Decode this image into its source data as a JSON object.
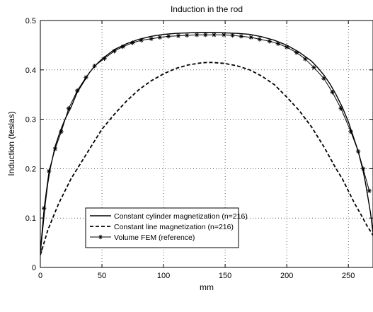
{
  "chart_data": {
    "type": "line",
    "title": "Induction in the rod",
    "xlabel": "mm",
    "ylabel": "Induction (teslas)",
    "xlim": [
      0,
      270
    ],
    "ylim": [
      0,
      0.5
    ],
    "xticks": [
      0,
      50,
      100,
      150,
      200,
      250
    ],
    "yticks": [
      0,
      0.1,
      0.2,
      0.3,
      0.4,
      0.5
    ],
    "grid": true,
    "legend_position": "bottom-left",
    "series": [
      {
        "name": "Constant cylinder magnetization (n=216)",
        "style": "solid",
        "color": "#000000",
        "x": [
          0,
          2,
          4,
          6,
          8,
          12,
          16,
          20,
          25,
          30,
          35,
          40,
          45,
          50,
          60,
          70,
          80,
          90,
          100,
          110,
          120,
          130,
          135,
          140,
          150,
          160,
          170,
          180,
          190,
          200,
          210,
          220,
          225,
          230,
          235,
          240,
          245,
          250,
          254,
          258,
          262,
          264,
          266,
          268,
          270
        ],
        "y": [
          0.03,
          0.08,
          0.13,
          0.17,
          0.2,
          0.245,
          0.275,
          0.3,
          0.325,
          0.355,
          0.375,
          0.395,
          0.41,
          0.422,
          0.441,
          0.453,
          0.462,
          0.468,
          0.472,
          0.474,
          0.475,
          0.476,
          0.476,
          0.476,
          0.475,
          0.474,
          0.472,
          0.467,
          0.46,
          0.45,
          0.436,
          0.418,
          0.405,
          0.39,
          0.372,
          0.35,
          0.325,
          0.295,
          0.265,
          0.235,
          0.195,
          0.17,
          0.14,
          0.11,
          0.07
        ]
      },
      {
        "name": "Constant line magnetization (n=216)",
        "style": "dashed",
        "color": "#000000",
        "x": [
          0,
          3,
          6,
          10,
          15,
          20,
          25,
          30,
          40,
          50,
          60,
          70,
          80,
          90,
          100,
          110,
          120,
          130,
          135,
          140,
          150,
          160,
          170,
          180,
          190,
          200,
          210,
          220,
          230,
          240,
          245,
          250,
          255,
          260,
          265,
          270
        ],
        "y": [
          0.025,
          0.05,
          0.075,
          0.1,
          0.13,
          0.155,
          0.18,
          0.2,
          0.24,
          0.28,
          0.31,
          0.337,
          0.36,
          0.378,
          0.392,
          0.403,
          0.41,
          0.414,
          0.415,
          0.415,
          0.413,
          0.408,
          0.4,
          0.387,
          0.37,
          0.345,
          0.318,
          0.285,
          0.245,
          0.2,
          0.18,
          0.155,
          0.13,
          0.108,
          0.085,
          0.065
        ]
      },
      {
        "name": "Volume FEM (reference)",
        "style": "solid-star",
        "color": "#000000",
        "x": [
          0,
          3,
          7,
          12,
          17,
          23,
          30,
          37,
          44,
          52,
          60,
          67,
          75,
          82,
          90,
          97,
          104,
          112,
          119,
          127,
          134,
          141,
          149,
          156,
          163,
          171,
          178,
          186,
          193,
          200,
          208,
          215,
          222,
          230,
          237,
          244,
          252,
          258,
          262,
          267
        ],
        "y": [
          0.035,
          0.12,
          0.195,
          0.24,
          0.275,
          0.322,
          0.358,
          0.385,
          0.408,
          0.423,
          0.438,
          0.447,
          0.455,
          0.46,
          0.463,
          0.466,
          0.468,
          0.469,
          0.47,
          0.471,
          0.471,
          0.471,
          0.471,
          0.47,
          0.468,
          0.466,
          0.462,
          0.458,
          0.453,
          0.446,
          0.435,
          0.422,
          0.405,
          0.383,
          0.355,
          0.322,
          0.275,
          0.235,
          0.2,
          0.155
        ]
      }
    ]
  }
}
